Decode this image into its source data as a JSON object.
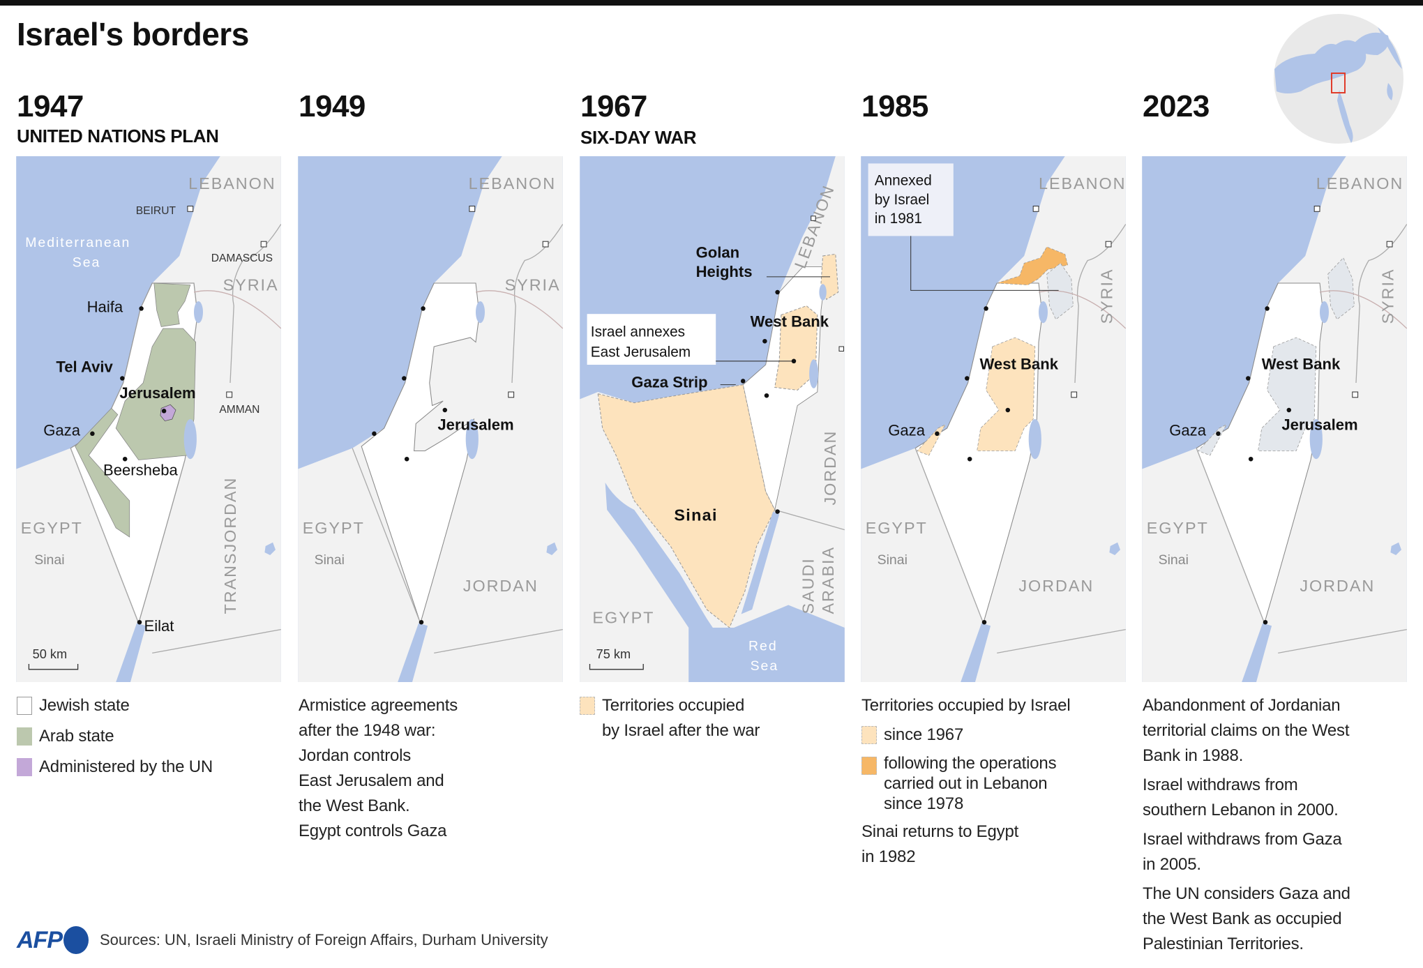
{
  "title": "Israel's borders",
  "colors": {
    "sea": "#b0c4e8",
    "land": "#f2f2f2",
    "israel": "#ffffff",
    "arab_state": "#bcc8ae",
    "un": "#c3a8d8",
    "occupied_1967": "#fde3bd",
    "occupied_lebanon": "#f6b766",
    "grey_territory": "#e3e7ec",
    "afp_blue": "#1b4fa0"
  },
  "panels": [
    {
      "year": "1947",
      "subtitle": "UNITED NATIONS PLAN",
      "map": {
        "lebanon": "LEBANON",
        "beirut": "BEIRUT",
        "sea1": "Mediterranean",
        "sea2": "Sea",
        "damascus": "DAMASCUS",
        "syria": "SYRIA",
        "haifa": "Haifa",
        "telaviv": "Tel Aviv",
        "jerusalem": "Jerusalem",
        "amman": "AMMAN",
        "gaza": "Gaza",
        "beersheba": "Beersheba",
        "egypt": "EGYPT",
        "sinai": "Sinai",
        "transjordan": "TRANSJORDAN",
        "eilat": "Eilat",
        "scale": "50 km"
      },
      "legend": [
        {
          "label": "Jewish state",
          "swatch": "#ffffff"
        },
        {
          "label": "Arab state",
          "swatch": "#bcc8ae"
        },
        {
          "label": "Administered by the UN",
          "swatch": "#c3a8d8"
        }
      ]
    },
    {
      "year": "1949",
      "map": {
        "lebanon": "LEBANON",
        "syria": "SYRIA",
        "jerusalem": "Jerusalem",
        "egypt": "EGYPT",
        "sinai": "Sinai",
        "jordan": "JORDAN"
      },
      "legend_lines": [
        "Armistice agreements",
        "after the 1948 war:",
        "Jordan controls",
        "East Jerusalem and",
        "the West Bank.",
        "Egypt controls Gaza"
      ]
    },
    {
      "year": "1967",
      "subtitle": "SIX-DAY WAR",
      "map": {
        "lebanon": "LEBANON",
        "golan1": "Golan",
        "golan2": "Heights",
        "annex1": "Israel annexes",
        "annex2": "East Jerusalem",
        "westbank": "West Bank",
        "gaza": "Gaza Strip",
        "jordan": "JORDAN",
        "sinai": "Sinai",
        "saudi1": "SAUDI",
        "saudi2": "ARABIA",
        "egypt": "EGYPT",
        "red1": "Red",
        "red2": "Sea",
        "scale": "75 km"
      },
      "legend": [
        {
          "label1": "Territories occupied",
          "label2": "by Israel after the war",
          "swatch": "#fde3bd"
        }
      ]
    },
    {
      "year": "1985",
      "map": {
        "annex1": "Annexed",
        "annex2": "by Israel",
        "annex3": "in 1981",
        "lebanon": "LEBANON",
        "syria": "SYRIA",
        "westbank": "West Bank",
        "gaza": "Gaza",
        "egypt": "EGYPT",
        "sinai": "Sinai",
        "jordan": "JORDAN"
      },
      "legend": {
        "heading": "Territories occupied by Israel",
        "items": [
          {
            "label": "since 1967",
            "swatch": "#fde3bd"
          },
          {
            "label1": "following the operations",
            "label2": "carried out in Lebanon",
            "label3": "since 1978",
            "swatch": "#f6b766"
          }
        ],
        "note1": "Sinai returns to Egypt",
        "note2": "in 1982"
      }
    },
    {
      "year": "2023",
      "map": {
        "lebanon": "LEBANON",
        "syria": "SYRIA",
        "westbank": "West Bank",
        "jerusalem": "Jerusalem",
        "gaza": "Gaza",
        "egypt": "EGYPT",
        "sinai": "Sinai",
        "jordan": "JORDAN"
      },
      "legend_paras": [
        [
          "Abandonment of Jordanian",
          "territorial claims on the West",
          "Bank in 1988."
        ],
        [
          "Israel withdraws from",
          "southern Lebanon in 2000."
        ],
        [
          "Israel withdraws from Gaza",
          "in 2005."
        ],
        [
          "The UN considers Gaza and",
          "the West Bank as occupied",
          "Palestinian Territories."
        ]
      ]
    }
  ],
  "footer": {
    "logo": "AFP",
    "sources": "Sources: UN, Israeli Ministry of Foreign Affairs, Durham University"
  }
}
